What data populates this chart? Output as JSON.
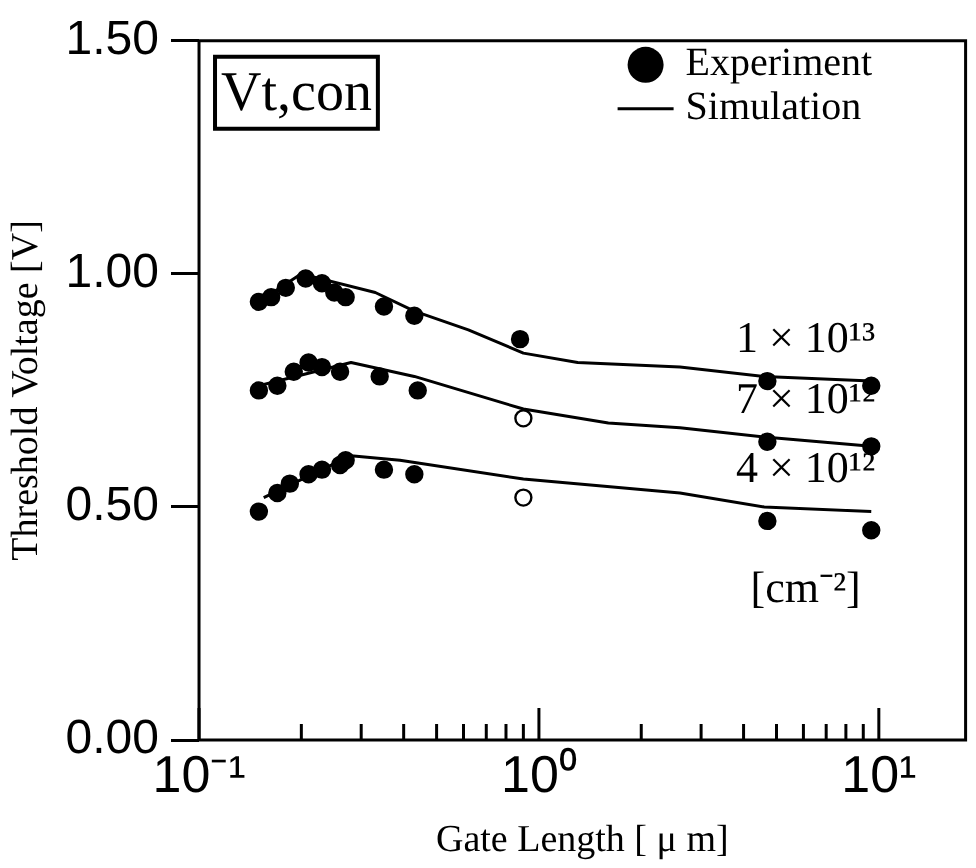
{
  "chart_data": {
    "type": "scatter",
    "xlabel": "Gate Length [ μ m]",
    "ylabel": "Threshold Voltage [V]",
    "log": "x",
    "xlim": [
      0.1,
      18
    ],
    "ylim": [
      0,
      1.5
    ],
    "xticks": [
      {
        "value": 0.1,
        "label": "10⁻¹"
      },
      {
        "value": 0.2,
        "label": null
      },
      {
        "value": 0.3,
        "label": null
      },
      {
        "value": 0.4,
        "label": null
      },
      {
        "value": 0.5,
        "label": null
      },
      {
        "value": 0.6,
        "label": null
      },
      {
        "value": 0.7,
        "label": null
      },
      {
        "value": 0.8,
        "label": null
      },
      {
        "value": 0.9,
        "label": null
      },
      {
        "value": 1,
        "label": "10⁰"
      },
      {
        "value": 2,
        "label": null
      },
      {
        "value": 3,
        "label": null
      },
      {
        "value": 4,
        "label": null
      },
      {
        "value": 5,
        "label": null
      },
      {
        "value": 6,
        "label": null
      },
      {
        "value": 7,
        "label": null
      },
      {
        "value": 8,
        "label": null
      },
      {
        "value": 9,
        "label": null
      },
      {
        "value": 10,
        "label": "10¹"
      }
    ],
    "yticks": [
      {
        "value": 0,
        "label": "0.00"
      },
      {
        "value": 0.5,
        "label": "0.50"
      },
      {
        "value": 1,
        "label": "1.00"
      },
      {
        "value": 1.5,
        "label": "1.50"
      }
    ],
    "grid": false,
    "legend": "top right",
    "series": [
      {
        "name": "Experiment",
        "marker": "circle",
        "color": "#000000",
        "x": [
          0.15,
          0.163,
          0.18,
          0.206,
          0.23,
          0.25,
          0.27,
          0.35,
          0.43,
          0.88,
          4.7,
          9.5
        ],
        "values": [
          0.94,
          0.95,
          0.97,
          0.99,
          0.98,
          0.96,
          0.95,
          0.93,
          0.91,
          0.86,
          0.77,
          0.76
        ]
      },
      {
        "marker": "circle",
        "color": "#000000",
        "colors": [
          "#000000",
          "#000000",
          "#000000",
          "#000000",
          "#000000",
          "#000000",
          "#000000",
          "#000000",
          "#ffffff",
          "#000000",
          "#000000"
        ],
        "x": [
          0.15,
          0.17,
          0.19,
          0.21,
          0.23,
          0.26,
          0.34,
          0.44,
          0.9,
          4.7,
          9.5
        ],
        "values": [
          0.75,
          0.76,
          0.79,
          0.81,
          0.8,
          0.79,
          0.78,
          0.75,
          0.69,
          0.64,
          0.63
        ]
      },
      {
        "marker": "circle",
        "color": "#000000",
        "colors": [
          "#000000",
          "#000000",
          "#000000",
          "#000000",
          "#000000",
          "#000000",
          "#000000",
          "#000000",
          "#000000",
          "#ffffff",
          "#000000",
          "#000000"
        ],
        "x": [
          0.15,
          0.17,
          0.185,
          0.21,
          0.23,
          0.26,
          0.27,
          0.35,
          0.43,
          0.9,
          4.7,
          9.5
        ],
        "values": [
          0.49,
          0.53,
          0.55,
          0.57,
          0.58,
          0.59,
          0.6,
          0.58,
          0.57,
          0.52,
          0.47,
          0.45
        ]
      },
      {
        "name": "Simulation",
        "type": "line",
        "marker": "none",
        "color": "#000000",
        "x": [
          0.15,
          0.2,
          0.33,
          0.43,
          0.62,
          0.9,
          1.3,
          2.6,
          4.6,
          9.5
        ],
        "values": [
          0.94,
          1.0,
          0.96,
          0.92,
          0.88,
          0.83,
          0.81,
          0.8,
          0.78,
          0.77
        ]
      },
      {
        "type": "line",
        "marker": "none",
        "color": "#000000",
        "x": [
          0.15,
          0.28,
          0.43,
          0.9,
          1.6,
          2.6,
          4.6,
          9.5
        ],
        "values": [
          0.76,
          0.81,
          0.78,
          0.71,
          0.68,
          0.67,
          0.65,
          0.63
        ]
      },
      {
        "type": "line",
        "marker": "none",
        "color": "#000000",
        "x": [
          0.155,
          0.28,
          0.39,
          0.9,
          2.6,
          4.6,
          9.5
        ],
        "values": [
          0.52,
          0.61,
          0.6,
          0.56,
          0.53,
          0.5,
          0.49
        ]
      }
    ],
    "annotations": [
      "Vt,con",
      "1 × 10¹³",
      "7 × 10¹²",
      "4 × 10¹²",
      "[cm⁻²]"
    ]
  }
}
